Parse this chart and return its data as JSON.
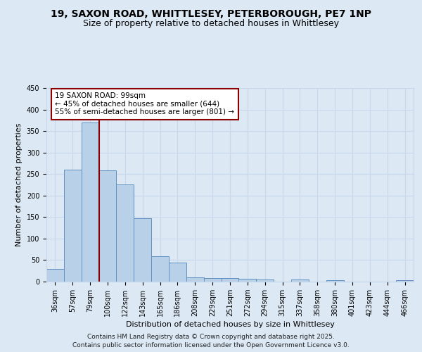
{
  "title_line1": "19, SAXON ROAD, WHITTLESEY, PETERBOROUGH, PE7 1NP",
  "title_line2": "Size of property relative to detached houses in Whittlesey",
  "xlabel": "Distribution of detached houses by size in Whittlesey",
  "ylabel": "Number of detached properties",
  "categories": [
    "36sqm",
    "57sqm",
    "79sqm",
    "100sqm",
    "122sqm",
    "143sqm",
    "165sqm",
    "186sqm",
    "208sqm",
    "229sqm",
    "251sqm",
    "272sqm",
    "294sqm",
    "315sqm",
    "337sqm",
    "358sqm",
    "380sqm",
    "401sqm",
    "423sqm",
    "444sqm",
    "466sqm"
  ],
  "values": [
    30,
    261,
    370,
    259,
    226,
    147,
    59,
    44,
    10,
    9,
    9,
    6,
    5,
    0,
    5,
    0,
    3,
    0,
    0,
    0,
    3
  ],
  "bar_color": "#b8d0e8",
  "bar_edge_color": "#6090c0",
  "grid_color": "#c8d8ec",
  "background_color": "#dce8f4",
  "vline_x": 2.5,
  "vline_color": "#8b0000",
  "annotation_text": "19 SAXON ROAD: 99sqm\n← 45% of detached houses are smaller (644)\n55% of semi-detached houses are larger (801) →",
  "annotation_box_color": "#ffffff",
  "annotation_edge_color": "#8b0000",
  "ylim": [
    0,
    450
  ],
  "yticks": [
    0,
    50,
    100,
    150,
    200,
    250,
    300,
    350,
    400,
    450
  ],
  "footer_line1": "Contains HM Land Registry data © Crown copyright and database right 2025.",
  "footer_line2": "Contains public sector information licensed under the Open Government Licence v3.0.",
  "title_fontsize": 10,
  "subtitle_fontsize": 9,
  "axis_label_fontsize": 8,
  "tick_fontsize": 7,
  "annotation_fontsize": 7.5,
  "footer_fontsize": 6.5
}
